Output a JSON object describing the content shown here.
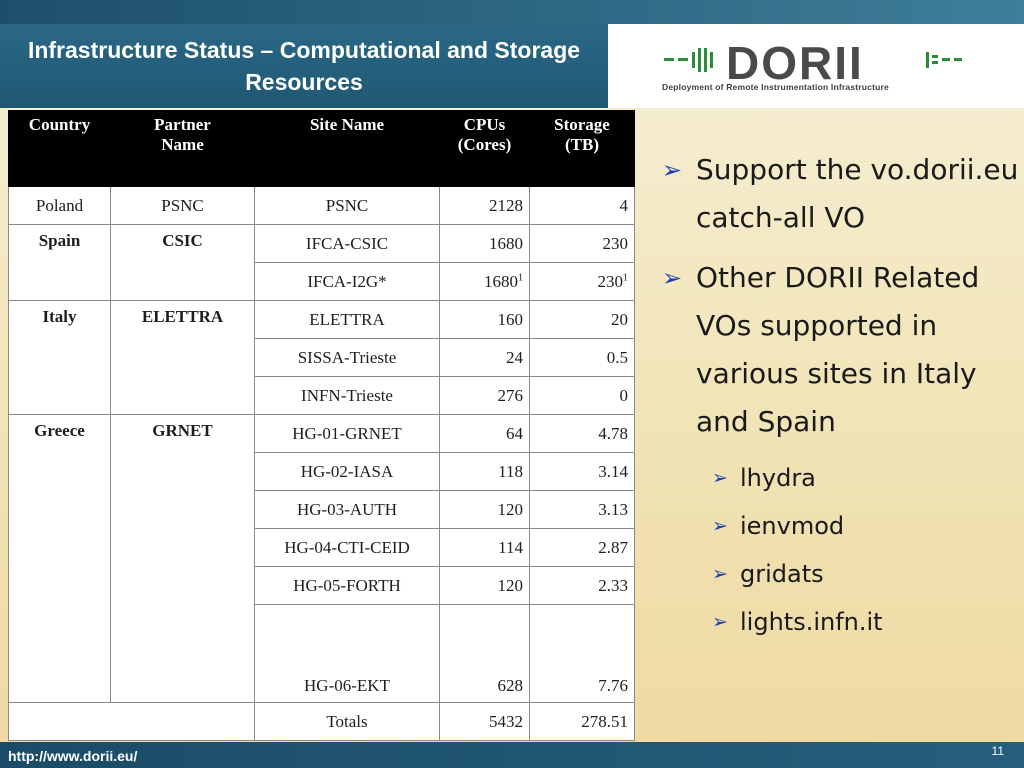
{
  "title": "Infrastructure Status – Computational and Storage Resources",
  "logo": {
    "word": "DORII",
    "tagline": "Deployment of Remote Instrumentation Infrastructure"
  },
  "table": {
    "headers": {
      "country": "Country",
      "partner_1": "Partner",
      "partner_2": "Name",
      "site": "Site Name",
      "cpus_1": "CPUs",
      "cpus_2": "(Cores)",
      "storage_1": "Storage",
      "storage_2": "(TB)"
    },
    "groups": [
      {
        "country": "Poland",
        "partner": "PSNC",
        "rows": [
          {
            "site": "PSNC",
            "cpus": "2128",
            "storage": "4"
          }
        ]
      },
      {
        "country": "Spain",
        "partner": "CSIC",
        "rows": [
          {
            "site": "IFCA-CSIC",
            "cpus": "1680",
            "storage": "230"
          },
          {
            "site": "IFCA-I2G*",
            "cpus": "1680",
            "cpus_sup": "1",
            "storage": "230",
            "storage_sup": "1"
          }
        ]
      },
      {
        "country": "Italy",
        "partner": "ELETTRA",
        "rows": [
          {
            "site": "ELETTRA",
            "cpus": "160",
            "storage": "20"
          },
          {
            "site": "SISSA-Trieste",
            "cpus": "24",
            "storage": "0.5"
          },
          {
            "site": "INFN-Trieste",
            "cpus": "276",
            "storage": "0"
          }
        ]
      },
      {
        "country": "Greece",
        "partner": "GRNET",
        "rows": [
          {
            "site": "HG-01-GRNET",
            "cpus": "64",
            "storage": "4.78"
          },
          {
            "site": "HG-02-IASA",
            "cpus": "118",
            "storage": "3.14"
          },
          {
            "site": "HG-03-AUTH",
            "cpus": "120",
            "storage": "3.13"
          },
          {
            "site": "HG-04-CTI-CEID",
            "cpus": "114",
            "storage": "2.87"
          },
          {
            "site": "HG-05-FORTH",
            "cpus": "120",
            "storage": "2.33"
          },
          {
            "site": "HG-06-EKT",
            "cpus": "628",
            "storage": "7.76"
          }
        ]
      }
    ],
    "totals": {
      "label": "Totals",
      "cpus": "5432",
      "storage": "278.51"
    }
  },
  "bullets": {
    "b1": "Support the vo.dorii.eu catch-all VO",
    "b2": "Other DORII Related VOs supported in various sites in Italy and Spain",
    "sub": [
      "lhydra",
      "ienvmod",
      "gridats",
      "lights.infn.it"
    ]
  },
  "footer": {
    "url": "http://www.dorii.eu/",
    "page": "11"
  },
  "colors": {
    "title_band": "#1f5873",
    "bullet_arrow": "#1c3fb0",
    "footer": "#1b4c67"
  }
}
